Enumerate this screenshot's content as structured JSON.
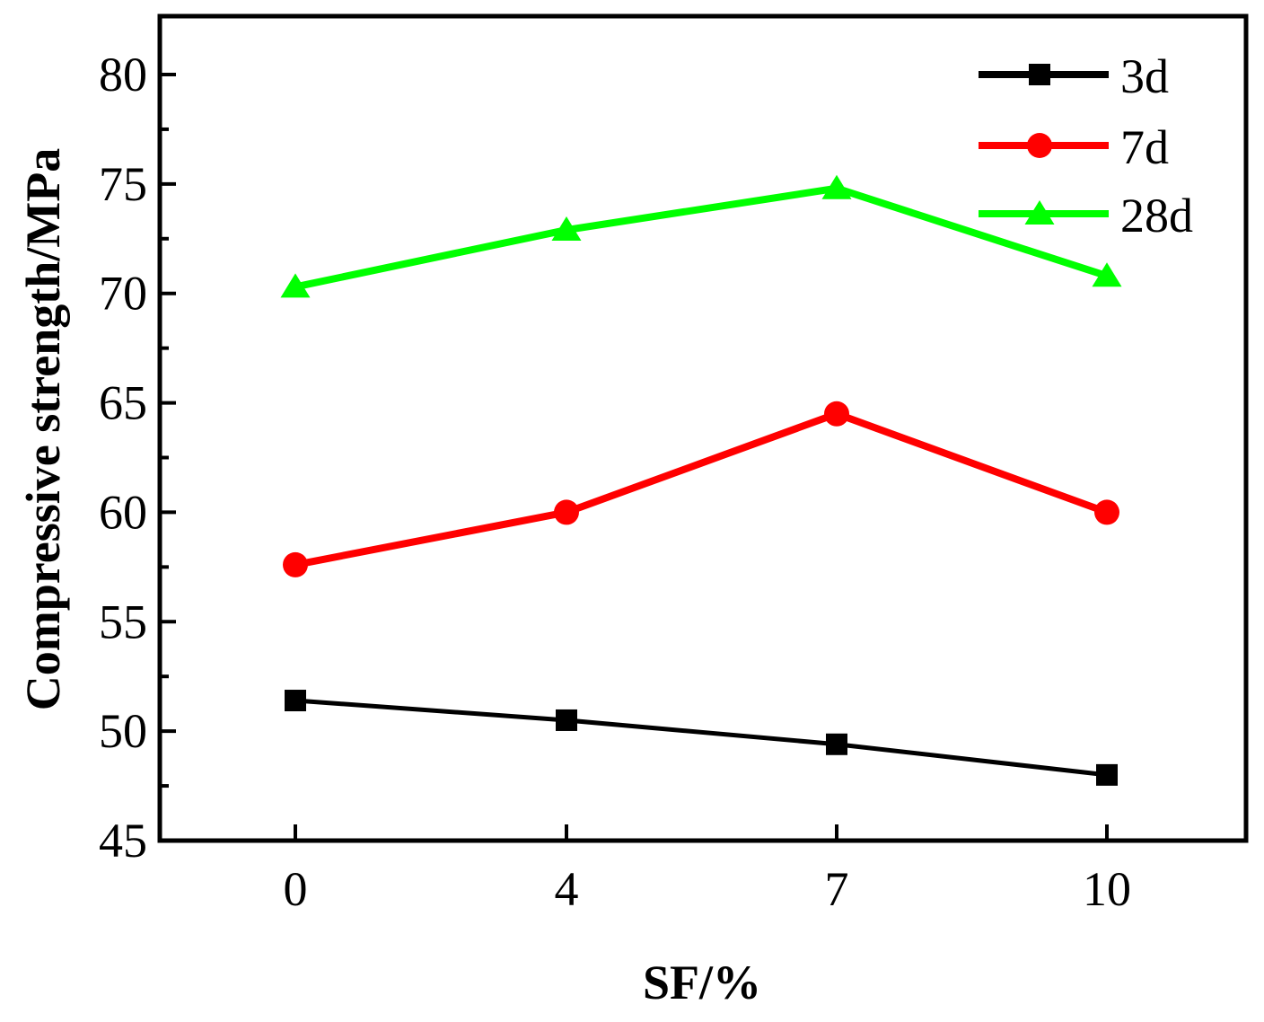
{
  "chart_data": {
    "type": "line",
    "title": "",
    "xlabel": "SF/%",
    "ylabel": "Compressive strength/MPa",
    "categories": [
      "0",
      "4",
      "7",
      "10"
    ],
    "x": [
      0,
      4,
      7,
      10
    ],
    "ylim": [
      45,
      82.5
    ],
    "yticks": [
      "45",
      "50",
      "55",
      "60",
      "65",
      "70",
      "75",
      "80"
    ],
    "grid": false,
    "legend_position": "top-right",
    "series": [
      {
        "name": "3d",
        "marker": "square",
        "color": "#000000",
        "values": [
          51.4,
          50.5,
          49.4,
          48.0
        ]
      },
      {
        "name": "7d",
        "marker": "circle",
        "color": "#ff0000",
        "values": [
          57.6,
          60.0,
          64.5,
          60.0
        ]
      },
      {
        "name": "28d",
        "marker": "triangle",
        "color": "#00ff00",
        "values": [
          70.3,
          72.9,
          74.8,
          70.8
        ]
      }
    ]
  }
}
